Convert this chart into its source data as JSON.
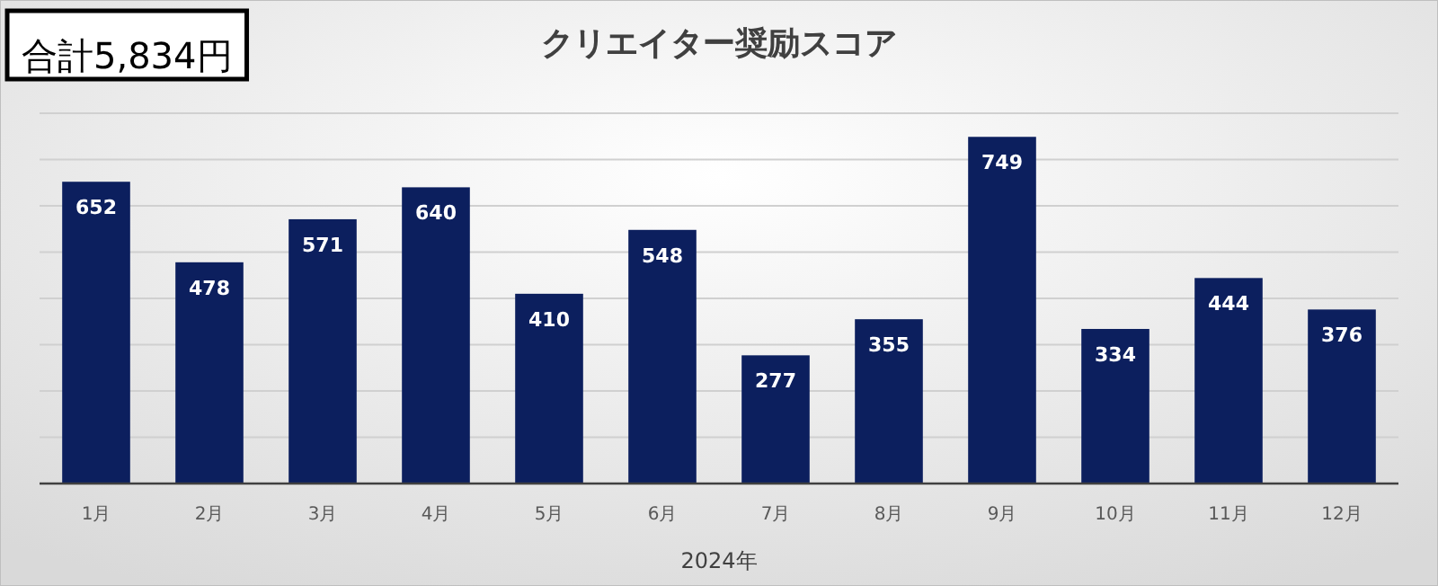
{
  "chart_data": {
    "type": "bar",
    "title": "クリエイター奨励スコア",
    "xlabel": "2024年",
    "annotations": [
      "合計5,834円"
    ],
    "categories": [
      "1月",
      "2月",
      "3月",
      "4月",
      "5月",
      "6月",
      "7月",
      "8月",
      "9月",
      "10月",
      "11月",
      "12月"
    ],
    "values": [
      652,
      478,
      571,
      640,
      410,
      548,
      277,
      355,
      749,
      334,
      444,
      376
    ],
    "color": "#0c1f5e",
    "data_labels": true,
    "ylim": [
      0,
      800
    ],
    "yticks": [
      {
        "value": 0,
        "label": null
      },
      {
        "value": 100,
        "label": null
      },
      {
        "value": 200,
        "label": null
      },
      {
        "value": 300,
        "label": null
      },
      {
        "value": 400,
        "label": null
      },
      {
        "value": 500,
        "label": null
      },
      {
        "value": 600,
        "label": null
      },
      {
        "value": 700,
        "label": null
      },
      {
        "value": 800,
        "label": null
      }
    ],
    "grid": "y",
    "tick_labels": "x"
  }
}
